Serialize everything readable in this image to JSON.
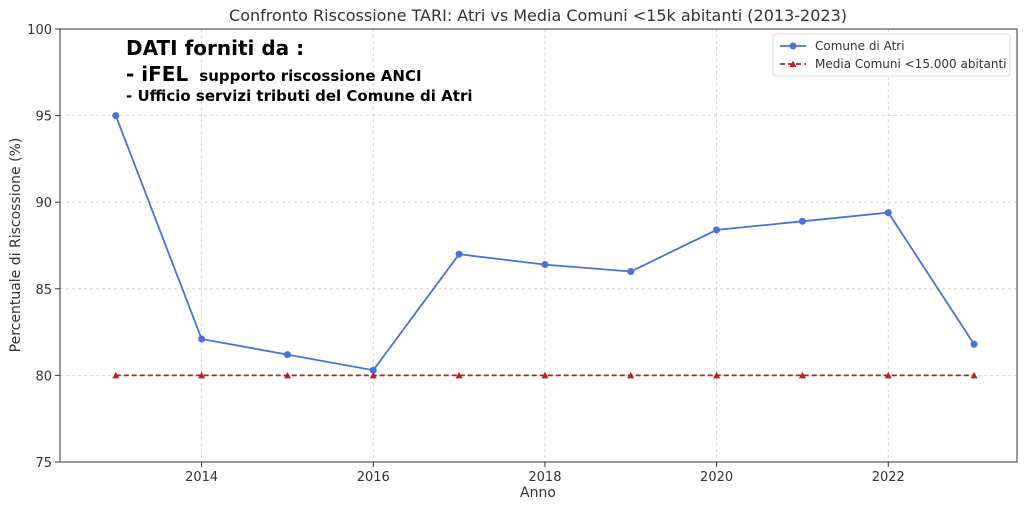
{
  "chart_data": {
    "type": "line",
    "title": "Confronto Riscossione TARI: Atri vs Media Comuni <15k abitanti (2013-2023)",
    "xlabel": "Anno",
    "ylabel": "Percentuale di Riscossione (%)",
    "x": [
      2013,
      2014,
      2015,
      2016,
      2017,
      2018,
      2019,
      2020,
      2021,
      2022,
      2023
    ],
    "xlim": [
      2012.35,
      2023.5
    ],
    "ylim": [
      75,
      100
    ],
    "xticks": [
      2014,
      2016,
      2018,
      2020,
      2022
    ],
    "yticks": [
      75,
      80,
      85,
      90,
      95,
      100
    ],
    "grid": true,
    "legend_position": "top-right",
    "series": [
      {
        "name": "Comune di Atri",
        "values": [
          95.0,
          82.1,
          81.2,
          80.3,
          87.0,
          86.4,
          86.0,
          88.4,
          88.9,
          89.4,
          81.8
        ],
        "color": "#4a72d4",
        "style": "solid",
        "marker": "circle"
      },
      {
        "name": "Media Comuni <15.000 abitanti",
        "values": [
          80,
          80,
          80,
          80,
          80,
          80,
          80,
          80,
          80,
          80,
          80
        ],
        "color": "#b22222",
        "style": "dashed",
        "marker": "triangle"
      }
    ],
    "annotation": {
      "heading": "DATI forniti da :",
      "line1_big": "- iFEL",
      "line1_small": "supporto riscossione ANCI",
      "line2": "-  Ufficio servizi tributi del Comune di Atri"
    }
  }
}
